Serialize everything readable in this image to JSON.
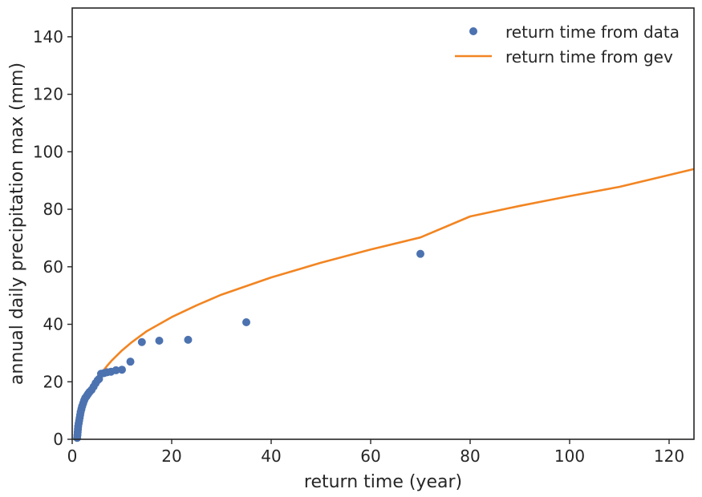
{
  "chart_data": {
    "type": "scatter",
    "title": "",
    "xlabel": "return time (year)",
    "ylabel": "annual daily precipitation max (mm)",
    "xlim": [
      0,
      125
    ],
    "ylim": [
      0,
      150
    ],
    "xticks": [
      0,
      20,
      40,
      60,
      80,
      100,
      120
    ],
    "yticks": [
      0,
      20,
      40,
      60,
      80,
      100,
      120,
      140
    ],
    "grid": false,
    "legend_position": "top-right",
    "colors": {
      "data": "#4c72b0",
      "gev": "#f28522",
      "axis": "#262626"
    },
    "series": [
      {
        "name": "return time from data",
        "kind": "scatter",
        "points": [
          [
            1.0,
            0.5
          ],
          [
            1.05,
            1.5
          ],
          [
            1.1,
            2.5
          ],
          [
            1.15,
            3.5
          ],
          [
            1.2,
            4.5
          ],
          [
            1.3,
            5.5
          ],
          [
            1.4,
            6.5
          ],
          [
            1.5,
            7.5
          ],
          [
            1.6,
            8.5
          ],
          [
            1.7,
            9.5
          ],
          [
            1.85,
            10.5
          ],
          [
            2.0,
            11.5
          ],
          [
            2.2,
            12.5
          ],
          [
            2.4,
            13.5
          ],
          [
            2.6,
            14.3
          ],
          [
            2.9,
            15.0
          ],
          [
            3.2,
            15.8
          ],
          [
            3.5,
            16.5
          ],
          [
            3.9,
            17.2
          ],
          [
            4.3,
            18.3
          ],
          [
            4.7,
            19.5
          ],
          [
            5.1,
            20.5
          ],
          [
            5.4,
            21.0
          ],
          [
            5.8,
            22.8
          ],
          [
            6.4,
            23.0
          ],
          [
            7.0,
            23.3
          ],
          [
            7.8,
            23.5
          ],
          [
            8.8,
            24.0
          ],
          [
            10.0,
            24.2
          ],
          [
            11.7,
            27.0
          ],
          [
            14.0,
            33.8
          ],
          [
            17.5,
            34.3
          ],
          [
            23.3,
            34.6
          ],
          [
            35.0,
            40.7
          ],
          [
            70.0,
            64.5
          ]
        ]
      },
      {
        "name": "return time from gev",
        "kind": "line",
        "points": [
          [
            1.01,
            0.0
          ],
          [
            1.2,
            2.0
          ],
          [
            1.5,
            5.5
          ],
          [
            2.0,
            9.3
          ],
          [
            3.0,
            14.2
          ],
          [
            4.0,
            17.9
          ],
          [
            5.0,
            20.8
          ],
          [
            6.0,
            23.3
          ],
          [
            7.0,
            25.5
          ],
          [
            8.0,
            27.5
          ],
          [
            10.0,
            30.9
          ],
          [
            12.0,
            33.8
          ],
          [
            15.0,
            37.6
          ],
          [
            20.0,
            42.5
          ],
          [
            25.0,
            46.6
          ],
          [
            30.0,
            50.3
          ],
          [
            40.0,
            56.3
          ],
          [
            50.0,
            61.4
          ],
          [
            60.0,
            66.0
          ],
          [
            70.0,
            70.2
          ],
          [
            80.0,
            77.5
          ],
          [
            90.0,
            81.2
          ],
          [
            100.0,
            84.6
          ],
          [
            110.0,
            87.8
          ],
          [
            125.0,
            94.0
          ]
        ]
      }
    ]
  }
}
